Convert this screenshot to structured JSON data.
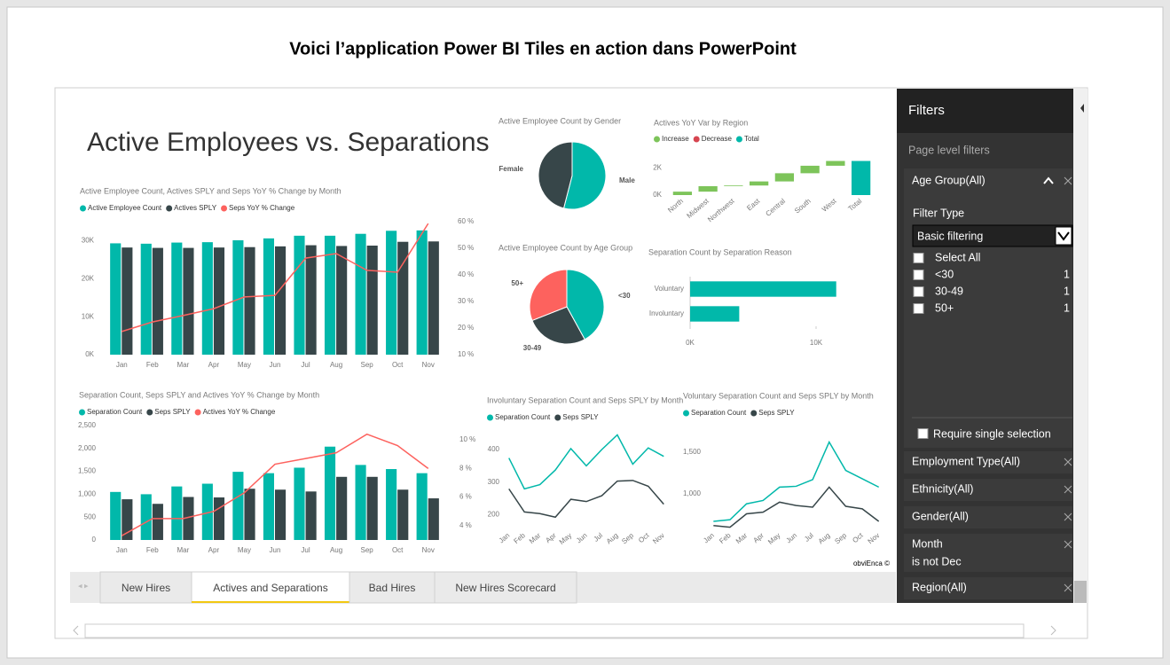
{
  "slide_title": "Voici l’application Power BI Tiles en action dans PowerPoint",
  "report": {
    "title": "Active Employees vs. Separations",
    "credit": "obviEnca ©"
  },
  "tabs": [
    "New Hires",
    "Actives and Separations",
    "Bad Hires",
    "New Hires Scorecard"
  ],
  "filters": {
    "title": "Filters",
    "section": "Page level filters",
    "expanded": {
      "name": "Age Group(All)",
      "filter_type_label": "Filter Type",
      "filter_type": "Basic filtering",
      "select_all": "Select All",
      "items": [
        {
          "label": "<30",
          "count": 1
        },
        {
          "label": "30-49",
          "count": 1
        },
        {
          "label": "50+",
          "count": 1
        }
      ],
      "require_single": "Require single selection"
    },
    "collapsed": [
      {
        "lines": [
          "Employment Type(All)"
        ]
      },
      {
        "lines": [
          "Ethnicity(All)"
        ]
      },
      {
        "lines": [
          "Gender(All)"
        ]
      },
      {
        "lines": [
          "Month",
          "is not Dec"
        ]
      },
      {
        "lines": [
          "Region(All)"
        ]
      }
    ]
  },
  "chart_data": [
    {
      "type": "combo",
      "title": "Active Employee Count, Actives SPLY and Seps YoY % Change by Month",
      "categories": [
        "Jan",
        "Feb",
        "Mar",
        "Apr",
        "May",
        "Jun",
        "Jul",
        "Aug",
        "Sep",
        "Oct",
        "Nov"
      ],
      "series": [
        {
          "name": "Active Employee Count",
          "color": "#01B8AA",
          "kind": "bar",
          "values": [
            29300,
            29200,
            29500,
            29600,
            30100,
            30600,
            31300,
            31300,
            31800,
            32600,
            32700
          ]
        },
        {
          "name": "Actives SPLY",
          "color": "#374649",
          "kind": "bar",
          "values": [
            28200,
            28100,
            28100,
            28200,
            28300,
            28500,
            28800,
            28600,
            28700,
            29700,
            29800
          ]
        },
        {
          "name": "Seps YoY % Change",
          "color": "#FD625E",
          "kind": "line",
          "axis": "y2",
          "values": [
            18.7,
            22.3,
            24.7,
            27.3,
            31.7,
            32.3,
            46.3,
            48,
            41.7,
            41,
            59.3
          ]
        }
      ],
      "ylim": [
        0,
        35000
      ],
      "yticks": [
        {
          "value": 0,
          "label": "0K"
        },
        {
          "value": 10000,
          "label": "10K"
        },
        {
          "value": 20000,
          "label": "20K"
        },
        {
          "value": 30000,
          "label": "30K"
        }
      ],
      "y2lim": [
        10,
        60
      ],
      "y2ticks": [
        {
          "value": 10,
          "label": "10 %"
        },
        {
          "value": 20,
          "label": "20 %"
        },
        {
          "value": 30,
          "label": "30 %"
        },
        {
          "value": 40,
          "label": "40 %"
        },
        {
          "value": 50,
          "label": "50 %"
        },
        {
          "value": 60,
          "label": "60 %"
        }
      ]
    },
    {
      "type": "combo",
      "title": "Separation Count, Seps SPLY and Actives YoY % Change by Month",
      "categories": [
        "Jan",
        "Feb",
        "Mar",
        "Apr",
        "May",
        "Jun",
        "Jul",
        "Aug",
        "Sep",
        "Oct",
        "Nov"
      ],
      "series": [
        {
          "name": "Separation Count",
          "color": "#01B8AA",
          "kind": "bar",
          "values": [
            1050,
            1000,
            1170,
            1230,
            1490,
            1460,
            1580,
            2040,
            1640,
            1550,
            1460
          ]
        },
        {
          "name": "Seps SPLY",
          "color": "#374649",
          "kind": "bar",
          "values": [
            890,
            790,
            940,
            930,
            1120,
            1100,
            1060,
            1380,
            1380,
            1100,
            910
          ]
        },
        {
          "name": "Actives YoY % Change",
          "color": "#FD625E",
          "kind": "line",
          "axis": "y2",
          "values": [
            3.3,
            4.5,
            4.5,
            5,
            6.3,
            8.3,
            8.7,
            9.1,
            10.4,
            9.6,
            8
          ]
        }
      ],
      "ylim": [
        0,
        2500
      ],
      "yticks": [
        0,
        500,
        {
          "value": 1000,
          "label": "1,000"
        },
        {
          "value": 1500,
          "label": "1,500"
        },
        {
          "value": 2000,
          "label": "2,000"
        },
        {
          "value": 2500,
          "label": "2,500"
        }
      ],
      "y2lim": [
        3,
        11
      ],
      "y2ticks": [
        {
          "value": 4,
          "label": "4 %"
        },
        {
          "value": 6,
          "label": "6 %"
        },
        {
          "value": 8,
          "label": "8 %"
        },
        {
          "value": 10,
          "label": "10 %"
        }
      ]
    },
    {
      "type": "pie",
      "title": "Active Employee Count by Gender",
      "categories": [
        "Male",
        "Female"
      ],
      "values": [
        54,
        46
      ],
      "colors": [
        "#01B8AA",
        "#374649"
      ]
    },
    {
      "type": "pie",
      "title": "Active Employee Count by Age Group",
      "categories": [
        "<30",
        "30-49",
        "50+"
      ],
      "values": [
        42,
        27,
        31
      ],
      "colors": [
        "#01B8AA",
        "#374649",
        "#FD625E"
      ]
    },
    {
      "type": "waterfall",
      "title": "Actives YoY Var by Region",
      "legend": [
        {
          "name": "Increase",
          "color": "#7DC45A"
        },
        {
          "name": "Decrease",
          "color": "#D64550"
        },
        {
          "name": "Total",
          "color": "#01B8AA"
        }
      ],
      "categories": [
        "North",
        "Midwest",
        "Northwest",
        "East",
        "Central",
        "South",
        "West",
        "Total"
      ],
      "values": [
        250,
        400,
        50,
        300,
        600,
        550,
        350,
        2500
      ],
      "ylim": [
        0,
        2600
      ],
      "yticks": [
        {
          "value": 0,
          "label": "0K"
        },
        {
          "value": 2000,
          "label": "2K"
        }
      ]
    },
    {
      "type": "hbar",
      "title": "Separation Count by Separation Reason",
      "categories": [
        "Voluntary",
        "Involuntary"
      ],
      "values": [
        11600,
        3900
      ],
      "color": "#01B8AA",
      "xlim": [
        0,
        15000
      ],
      "xticks": [
        {
          "value": 0,
          "label": "0K"
        },
        {
          "value": 10000,
          "label": "10K"
        }
      ]
    },
    {
      "type": "line",
      "title": "Involuntary Separation Count and Seps SPLY by Month",
      "categories": [
        "Jan",
        "Feb",
        "Mar",
        "Apr",
        "May",
        "Jun",
        "Jul",
        "Aug",
        "Sep",
        "Oct",
        "Nov"
      ],
      "series": [
        {
          "name": "Separation Count",
          "color": "#01B8AA",
          "values": [
            374,
            279,
            292,
            337,
            403,
            350,
            400,
            445,
            355,
            405,
            379
          ]
        },
        {
          "name": "Seps SPLY",
          "color": "#374649",
          "values": [
            279,
            208,
            203,
            192,
            247,
            240,
            258,
            303,
            305,
            287,
            232
          ]
        }
      ],
      "ylim": [
        160,
        460
      ],
      "yticks": [
        200,
        300,
        400
      ]
    },
    {
      "type": "line",
      "title": "Voluntary Separation Count and Seps SPLY by Month",
      "categories": [
        "Jan",
        "Feb",
        "Mar",
        "Apr",
        "May",
        "Jun",
        "Jul",
        "Aug",
        "Sep",
        "Oct",
        "Nov"
      ],
      "series": [
        {
          "name": "Separation Count",
          "color": "#01B8AA",
          "values": [
            670,
            690,
            880,
            920,
            1080,
            1090,
            1170,
            1620,
            1280,
            1180,
            1080
          ]
        },
        {
          "name": "Seps SPLY",
          "color": "#374649",
          "values": [
            620,
            600,
            760,
            780,
            900,
            860,
            840,
            1080,
            850,
            820,
            670
          ]
        }
      ],
      "ylim": [
        500,
        1700
      ],
      "yticks": [
        {
          "value": 1000,
          "label": "1,000"
        },
        {
          "value": 1500,
          "label": "1,500"
        }
      ]
    }
  ]
}
